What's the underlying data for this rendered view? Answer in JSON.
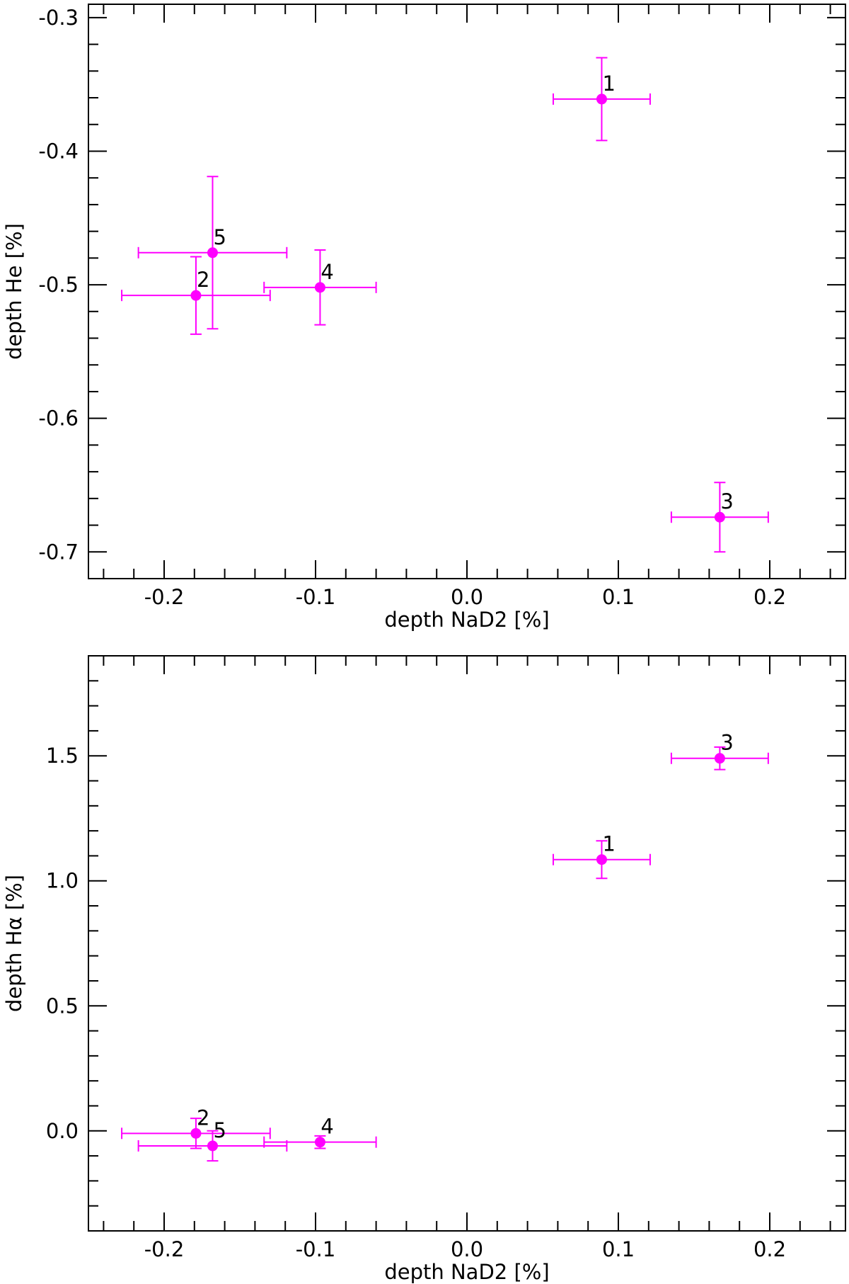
{
  "chart_data": [
    {
      "type": "scatter",
      "title": "",
      "xlabel": "depth NaD2 [%]",
      "ylabel": "depth He [%]",
      "xlim": [
        -0.25,
        0.25
      ],
      "ylim": [
        -0.72,
        -0.29
      ],
      "xticks": [
        -0.2,
        -0.1,
        0.0,
        0.1,
        0.2
      ],
      "xtick_labels": [
        "-0.2",
        "-0.1",
        "0.0",
        "0.1",
        "0.2"
      ],
      "yticks": [
        -0.3,
        -0.4,
        -0.5,
        -0.6,
        -0.7
      ],
      "ytick_labels": [
        "-0.3",
        "-0.4",
        "-0.5",
        "-0.6",
        "-0.7"
      ],
      "x_minor_step": 0.02,
      "y_minor_step": 0.02,
      "grid": false,
      "marker_color": "#ff00ff",
      "points": [
        {
          "label": "1",
          "x": 0.089,
          "y": -0.361,
          "xerr": 0.032,
          "yerr": 0.031
        },
        {
          "label": "2",
          "x": -0.179,
          "y": -0.508,
          "xerr": 0.049,
          "yerr": 0.029
        },
        {
          "label": "3",
          "x": 0.167,
          "y": -0.674,
          "xerr": 0.032,
          "yerr": 0.026
        },
        {
          "label": "4",
          "x": -0.097,
          "y": -0.502,
          "xerr": 0.037,
          "yerr": 0.028
        },
        {
          "label": "5",
          "x": -0.168,
          "y": -0.476,
          "xerr": 0.049,
          "yerr": 0.057
        }
      ]
    },
    {
      "type": "scatter",
      "title": "",
      "xlabel": "depth NaD2 [%]",
      "ylabel": "depth Hα [%]",
      "xlim": [
        -0.25,
        0.25
      ],
      "ylim": [
        -0.4,
        1.9
      ],
      "xticks": [
        -0.2,
        -0.1,
        0.0,
        0.1,
        0.2
      ],
      "xtick_labels": [
        "-0.2",
        "-0.1",
        "0.0",
        "0.1",
        "0.2"
      ],
      "yticks": [
        0.0,
        0.5,
        1.0,
        1.5
      ],
      "ytick_labels": [
        "0.0",
        "0.5",
        "1.0",
        "1.5"
      ],
      "x_minor_step": 0.02,
      "y_minor_step": 0.1,
      "grid": false,
      "marker_color": "#ff00ff",
      "points": [
        {
          "label": "1",
          "x": 0.089,
          "y": 1.085,
          "xerr": 0.032,
          "yerr": 0.075
        },
        {
          "label": "2",
          "x": -0.179,
          "y": -0.01,
          "xerr": 0.049,
          "yerr": 0.06
        },
        {
          "label": "3",
          "x": 0.167,
          "y": 1.49,
          "xerr": 0.032,
          "yerr": 0.045
        },
        {
          "label": "4",
          "x": -0.097,
          "y": -0.045,
          "xerr": 0.037,
          "yerr": 0.025
        },
        {
          "label": "5",
          "x": -0.168,
          "y": -0.06,
          "xerr": 0.049,
          "yerr": 0.06
        }
      ]
    }
  ]
}
